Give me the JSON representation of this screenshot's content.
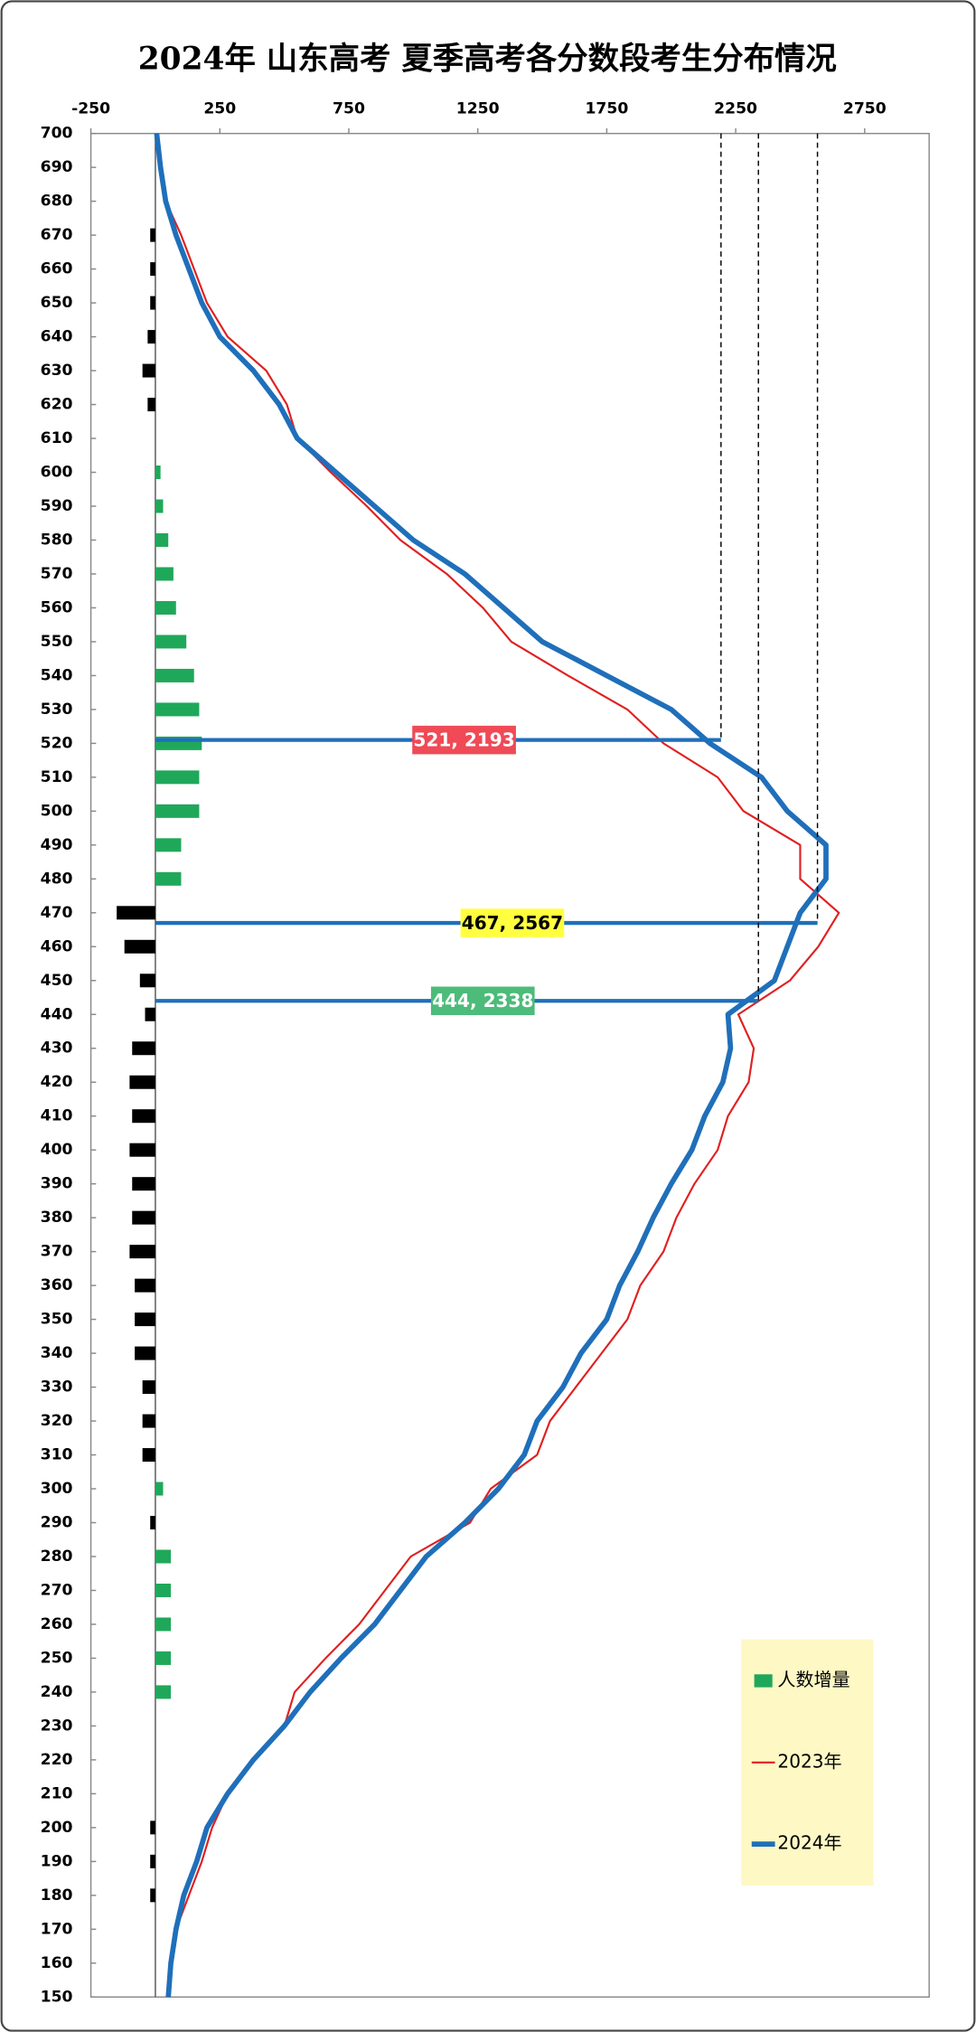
{
  "chart_data": {
    "type": "line",
    "orientation": "horizontal",
    "title": "2024年 山东高考 夏季高考各分数段考生分布情况",
    "x": [
      150,
      160,
      170,
      180,
      190,
      200,
      210,
      220,
      230,
      240,
      250,
      260,
      270,
      280,
      290,
      300,
      310,
      320,
      330,
      340,
      350,
      360,
      370,
      380,
      390,
      400,
      410,
      420,
      430,
      440,
      450,
      460,
      470,
      480,
      490,
      500,
      510,
      520,
      530,
      540,
      550,
      560,
      570,
      580,
      590,
      600,
      610,
      620,
      630,
      640,
      650,
      660,
      670,
      680,
      690,
      700
    ],
    "series": [
      {
        "name": "人数增量",
        "kind": "bar",
        "color": "#1fa85a",
        "negative_color": "#000000",
        "values": [
          0,
          0,
          0,
          -20,
          -20,
          -20,
          0,
          0,
          0,
          60,
          60,
          60,
          60,
          60,
          -20,
          30,
          -50,
          -50,
          -50,
          -80,
          -80,
          -80,
          -100,
          -90,
          -90,
          -100,
          -90,
          -100,
          -90,
          -40,
          -60,
          -120,
          -150,
          100,
          100,
          170,
          170,
          180,
          170,
          150,
          120,
          80,
          70,
          50,
          30,
          20,
          0,
          -30,
          -50,
          -30,
          -20,
          -20,
          -20,
          0,
          0,
          0
        ]
      },
      {
        "name": "2023年",
        "kind": "line",
        "color": "#e02020",
        "values": [
          50,
          60,
          80,
          130,
          180,
          220,
          280,
          380,
          500,
          540,
          660,
          790,
          890,
          990,
          1220,
          1300,
          1480,
          1530,
          1630,
          1730,
          1830,
          1880,
          1970,
          2020,
          2090,
          2180,
          2220,
          2300,
          2320,
          2260,
          2460,
          2570,
          2650,
          2500,
          2500,
          2280,
          2180,
          1970,
          1830,
          1600,
          1380,
          1270,
          1130,
          950,
          820,
          680,
          550,
          510,
          430,
          280,
          200,
          150,
          100,
          40,
          20,
          5
        ]
      },
      {
        "name": "2024年",
        "kind": "line",
        "color": "#1f6fba",
        "values": [
          50,
          60,
          80,
          110,
          160,
          200,
          280,
          380,
          500,
          600,
          720,
          850,
          950,
          1050,
          1200,
          1330,
          1430,
          1480,
          1580,
          1650,
          1750,
          1800,
          1870,
          1930,
          2000,
          2080,
          2130,
          2200,
          2230,
          2220,
          2400,
          2450,
          2500,
          2600,
          2600,
          2450,
          2350,
          2150,
          2000,
          1750,
          1500,
          1350,
          1200,
          1000,
          850,
          700,
          550,
          480,
          380,
          250,
          180,
          130,
          80,
          40,
          20,
          5
        ]
      }
    ],
    "annotations": [
      {
        "label": "521, 2193",
        "score": 521,
        "value": 2193,
        "bg": "#ef4a56",
        "fg": "#ffffff"
      },
      {
        "label": "467, 2567",
        "score": 467,
        "value": 2567,
        "bg": "#ffff40",
        "fg": "#000000"
      },
      {
        "label": "444, 2338",
        "score": 444,
        "value": 2338,
        "bg": "#4dbb7a",
        "fg": "#ffffff"
      }
    ],
    "xlim": [
      -250,
      3000
    ],
    "xticks": [
      -250,
      250,
      750,
      1250,
      1750,
      2250,
      2750
    ],
    "ylim": [
      150,
      700
    ],
    "yticks": [
      150,
      160,
      170,
      180,
      190,
      200,
      210,
      220,
      230,
      240,
      250,
      260,
      270,
      280,
      290,
      300,
      310,
      320,
      330,
      340,
      350,
      360,
      370,
      380,
      390,
      400,
      410,
      420,
      430,
      440,
      450,
      460,
      470,
      480,
      490,
      500,
      510,
      520,
      530,
      540,
      550,
      560,
      570,
      580,
      590,
      600,
      610,
      620,
      630,
      640,
      650,
      660,
      670,
      680,
      690,
      700
    ],
    "legend": "bottom-right"
  }
}
